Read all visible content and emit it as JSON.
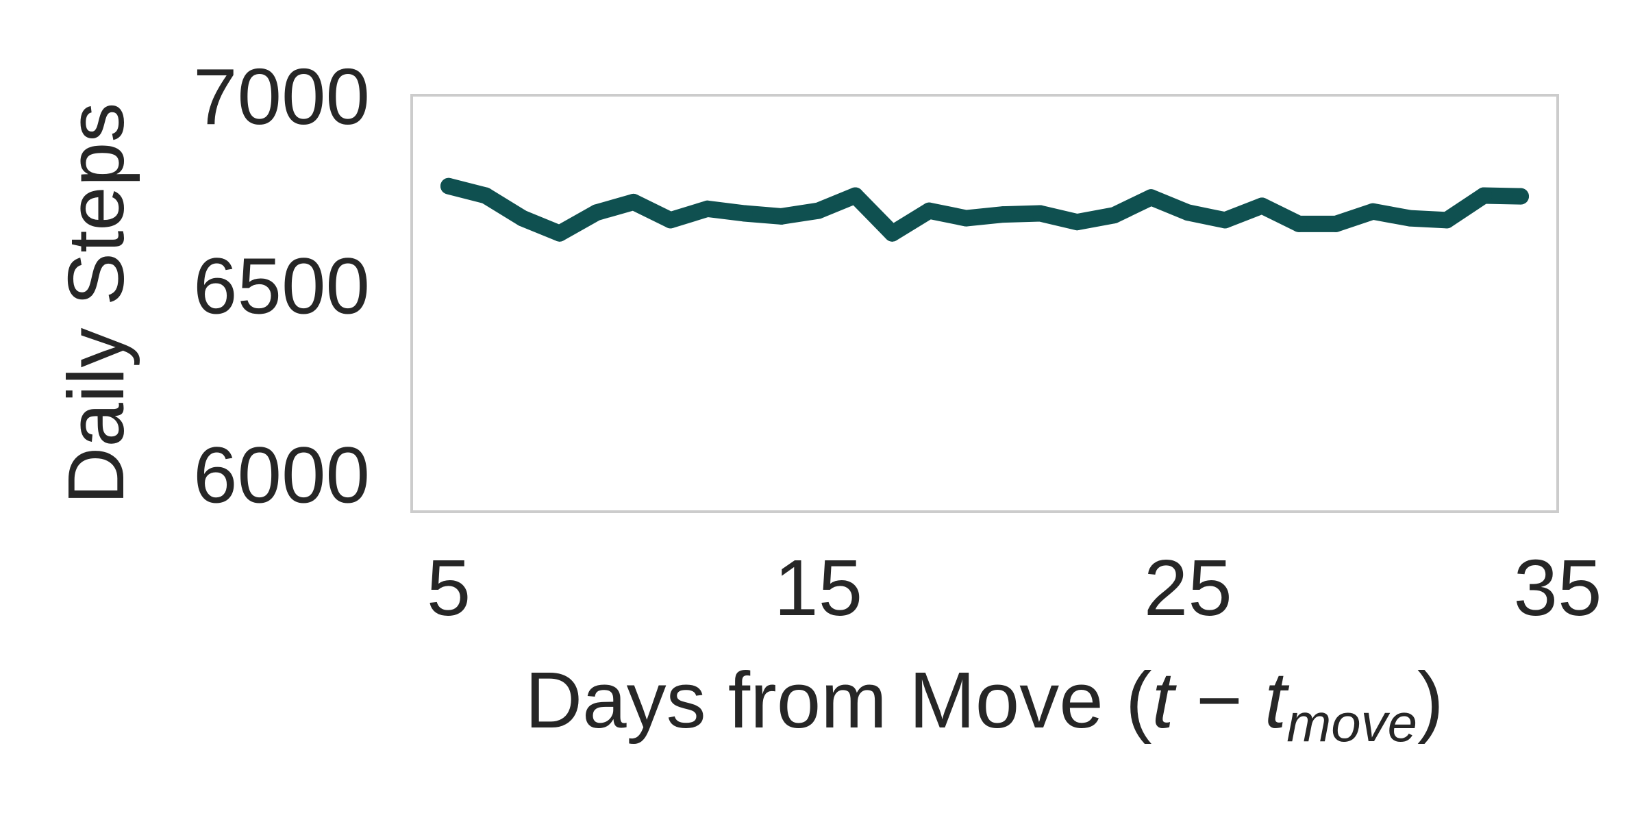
{
  "chart_data": {
    "type": "line",
    "xlabel": {
      "prefix": "Days from Move (",
      "t": "t",
      "minus": " − ",
      "t2": "t",
      "sub": "move",
      "suffix": ")"
    },
    "ylabel": "Daily Steps",
    "xlim": [
      4.0,
      35.0
    ],
    "ylim": [
      5900,
      7000
    ],
    "xticks": [
      {
        "value": 5,
        "label": "5"
      },
      {
        "value": 15,
        "label": "15"
      },
      {
        "value": 25,
        "label": "25"
      },
      {
        "value": 35,
        "label": "35"
      }
    ],
    "yticks": [
      {
        "value": 6000,
        "label": "6000"
      },
      {
        "value": 6500,
        "label": "6500"
      },
      {
        "value": 7000,
        "label": "7000"
      }
    ],
    "grid": false,
    "series": [
      {
        "color": "#0f5050",
        "x": [
          5,
          6,
          7,
          8,
          9,
          10,
          11,
          12,
          13,
          14,
          15,
          16,
          17,
          18,
          19,
          20,
          21,
          22,
          23,
          24,
          25,
          26,
          27,
          28,
          29,
          30,
          31,
          32,
          33,
          34
        ],
        "y": [
          6760,
          6735,
          6675,
          6635,
          6690,
          6718,
          6670,
          6700,
          6688,
          6680,
          6695,
          6735,
          6635,
          6695,
          6675,
          6685,
          6688,
          6665,
          6683,
          6730,
          6690,
          6670,
          6708,
          6660,
          6660,
          6693,
          6675,
          6670,
          6735,
          6733
        ]
      }
    ]
  }
}
